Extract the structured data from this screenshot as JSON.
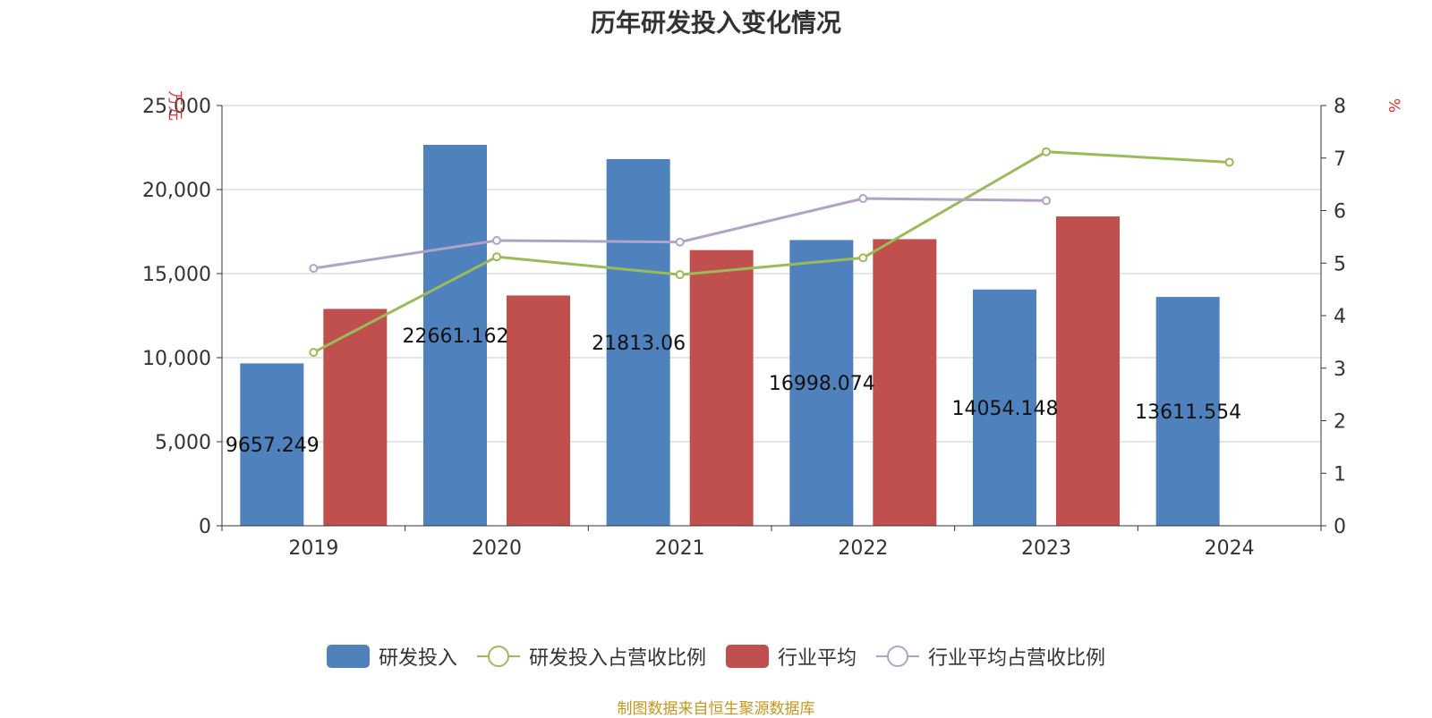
{
  "chart_data": {
    "type": "bar",
    "title": "历年研发投入变化情况",
    "categories": [
      "2019",
      "2020",
      "2021",
      "2022",
      "2023",
      "2024"
    ],
    "y_left": {
      "label": "万元",
      "ticks": [
        "0",
        "5,000",
        "10,000",
        "15,000",
        "20,000",
        "25,000"
      ],
      "range": [
        0,
        25000
      ]
    },
    "y_right": {
      "label": "%",
      "ticks": [
        "0",
        "1",
        "2",
        "3",
        "4",
        "5",
        "6",
        "7",
        "8"
      ],
      "range": [
        0,
        8
      ]
    },
    "series": [
      {
        "name": "研发投入",
        "kind": "bar",
        "axis": "left",
        "color": "#4f81bd",
        "values": [
          9657.249,
          22661.162,
          21813.06,
          16998.074,
          14054.148,
          13611.554
        ],
        "labels": [
          "9657.249",
          "22661.162",
          "21813.06",
          "16998.074",
          "14054.148",
          "13611.554"
        ]
      },
      {
        "name": "研发投入占营收比例",
        "kind": "line",
        "axis": "right",
        "color": "#9bbb59",
        "values": [
          3.3,
          5.12,
          4.78,
          5.1,
          7.12,
          6.92
        ]
      },
      {
        "name": "行业平均",
        "kind": "bar",
        "axis": "left",
        "color": "#c0504d",
        "values": [
          12900,
          13700,
          16400,
          17050,
          18400,
          null
        ]
      },
      {
        "name": "行业平均占营收比例",
        "kind": "line",
        "axis": "right",
        "color": "#b3a2c7",
        "values": [
          4.9,
          5.43,
          5.4,
          6.23,
          6.19,
          null
        ]
      }
    ],
    "grid": true,
    "legend_position": "bottom"
  },
  "source": "制图数据来自恒生聚源数据库"
}
